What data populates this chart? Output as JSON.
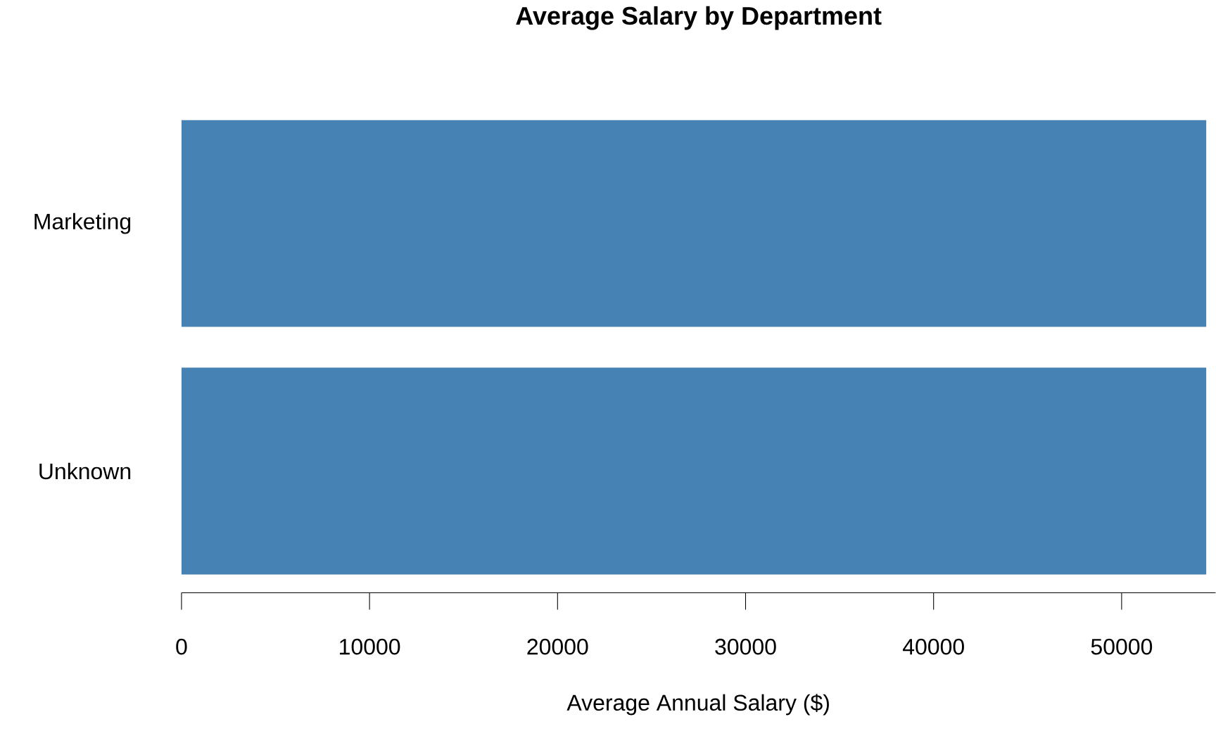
{
  "chart_data": {
    "type": "bar",
    "orientation": "horizontal",
    "title": "Average Salary by Department",
    "xlabel": "Average Annual Salary ($)",
    "categories": [
      "Marketing",
      "Unknown"
    ],
    "values": [
      54500,
      54500
    ],
    "color": "#4682b4",
    "xlim": [
      0,
      55000
    ],
    "xticks": [
      0,
      10000,
      20000,
      30000,
      40000,
      50000
    ],
    "grid": false
  }
}
